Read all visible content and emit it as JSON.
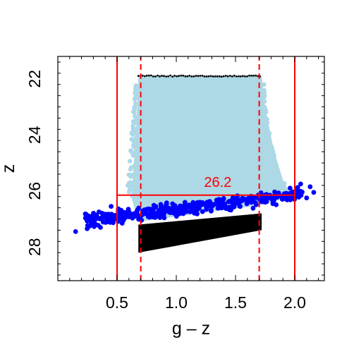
{
  "chart_data": {
    "type": "scatter",
    "xlabel": "g – z",
    "ylabel": "z",
    "xlim": [
      0.0,
      2.25
    ],
    "ylim": [
      29.2,
      21.2
    ],
    "y_inverted": true,
    "xticks": [
      "0.5",
      "1.0",
      "1.5",
      "2.0"
    ],
    "yticks": [
      "22",
      "24",
      "26",
      "28"
    ],
    "colors": {
      "light": "#add8e6",
      "blue": "#0000ff",
      "black": "#000000",
      "lines": "#ff0000"
    },
    "series": [
      {
        "color": "light",
        "region": {
          "x": [
            0.68,
            1.72
          ],
          "y_top": 21.9,
          "y_bottom_left": 27.1,
          "y_bottom_right": 26.5
        }
      },
      {
        "color": "blue",
        "band": {
          "x": [
            0.23,
            2.07
          ],
          "y_left": 27.05,
          "y_right": 26.1
        }
      },
      {
        "color": "black",
        "region": {
          "x": [
            0.68,
            1.72
          ],
          "y_top_left": 27.2,
          "y_top_right": 26.8,
          "y_bottom_left": 28.2,
          "y_bottom_right": 27.4
        }
      }
    ],
    "vlines_solid": [
      0.5,
      2.0
    ],
    "vlines_dashed": [
      0.7,
      1.7
    ],
    "hline": {
      "y": 26.15,
      "x_range": [
        0.5,
        2.0
      ]
    },
    "annotation": {
      "text": "26.2",
      "x": 1.35,
      "y": 25.85
    }
  }
}
